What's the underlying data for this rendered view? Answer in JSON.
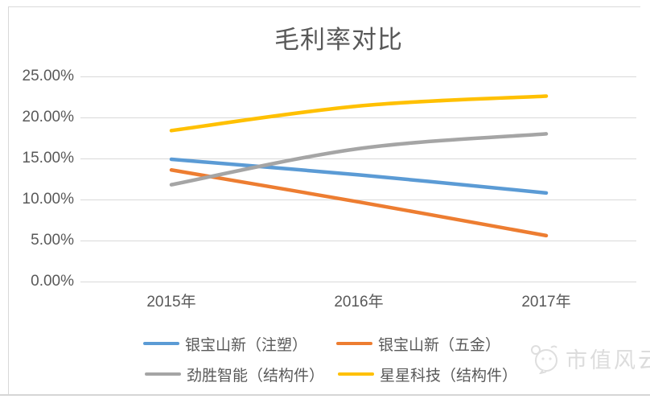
{
  "chart_data": {
    "type": "line",
    "title": "毛利率对比",
    "x": [
      "2015年",
      "2016年",
      "2017年"
    ],
    "series": [
      {
        "name": "银宝山新（注塑）",
        "color": "#5B9BD5",
        "values": [
          14.9,
          13.0,
          10.8
        ]
      },
      {
        "name": "银宝山新（五金）",
        "color": "#ED7D31",
        "values": [
          13.6,
          9.7,
          5.6
        ]
      },
      {
        "name": "劲胜智能（结构件）",
        "color": "#A5A5A5",
        "values": [
          11.8,
          16.2,
          18.0
        ]
      },
      {
        "name": "星星科技（结构件）",
        "color": "#FFC000",
        "values": [
          18.4,
          21.4,
          22.6
        ]
      }
    ],
    "y_ticks": [
      "25.00%",
      "20.00%",
      "15.00%",
      "10.00%",
      "5.00%",
      "0.00%"
    ],
    "ylim": [
      0,
      25
    ],
    "grid": true,
    "legend_position": "bottom",
    "text_color": "#595959",
    "gridline_color": "#D9D9D9"
  },
  "watermark": {
    "text": "市值风云"
  }
}
